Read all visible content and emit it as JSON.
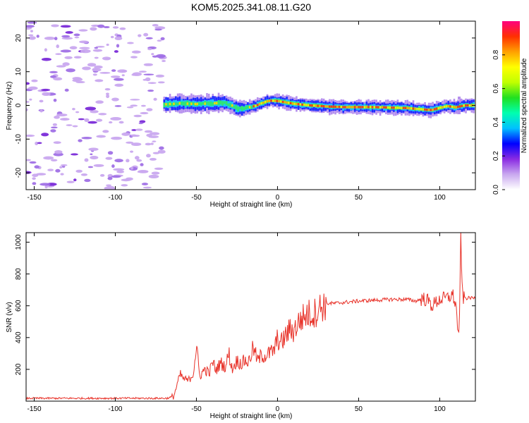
{
  "title": "KOM5.2025.341.08.11.G20",
  "chart_data": [
    {
      "type": "heatmap",
      "title": "KOM5.2025.341.08.11.G20",
      "xlabel": "Height of straight line (km)",
      "ylabel": "Frequency (Hz)",
      "xlim": [
        -155,
        122
      ],
      "ylim": [
        -25,
        25
      ],
      "xticks": [
        -150,
        -100,
        -50,
        0,
        50,
        100
      ],
      "yticks": [
        -20,
        -10,
        0,
        10,
        20
      ],
      "noise_region_x": [
        -155,
        -70
      ],
      "ridge": {
        "x": [
          -70,
          -60,
          -50,
          -40,
          -33,
          -28,
          -25,
          -22,
          -18,
          -14,
          -10,
          -6,
          -3,
          0,
          5,
          10,
          20,
          30,
          40,
          60,
          80,
          90,
          95,
          100,
          105,
          110,
          115,
          122
        ],
        "y": [
          0.3,
          0.6,
          0.4,
          0.6,
          0.8,
          0.0,
          -0.9,
          -1.0,
          -0.6,
          -0.2,
          0.6,
          1.3,
          1.4,
          1.3,
          0.9,
          0.5,
          0.0,
          -0.3,
          -0.5,
          -0.5,
          -0.8,
          -1.2,
          -1.4,
          -0.7,
          -0.2,
          -0.6,
          0.0,
          0.0
        ]
      },
      "colorbar": {
        "label": "Normalized spectral amplitude",
        "ticks": [
          0.0,
          0.2,
          0.4,
          0.6,
          0.8
        ],
        "range": [
          0,
          1
        ],
        "stops": [
          "#ffffff",
          "#c9a8ef",
          "#8a2be2",
          "#0000ff",
          "#00c0ff",
          "#00ffb0",
          "#20e020",
          "#c0ff00",
          "#ffff00",
          "#ffa000",
          "#ff3000",
          "#ff007f"
        ]
      }
    },
    {
      "type": "line",
      "xlabel": "Height of straight line (km)",
      "ylabel": "SNR (v/v)",
      "xlim": [
        -155,
        122
      ],
      "ylim": [
        0,
        1060
      ],
      "xticks": [
        -150,
        -100,
        -50,
        0,
        50,
        100
      ],
      "yticks": [
        200,
        400,
        600,
        800,
        1000
      ],
      "color": "#e8332a",
      "series": [
        {
          "name": "SNR",
          "x": [
            -155,
            -120,
            -80,
            -68,
            -64,
            -62,
            -60,
            -58,
            -55,
            -52,
            -50,
            -48,
            -45,
            -42,
            -40,
            -38,
            -35,
            -32,
            -30,
            -28,
            -25,
            -22,
            -20,
            -18,
            -15,
            -12,
            -10,
            -8,
            -5,
            -2,
            0,
            2,
            5,
            8,
            10,
            12,
            15,
            18,
            20,
            22,
            25,
            30,
            35,
            40,
            50,
            60,
            70,
            80,
            85,
            90,
            93,
            95,
            100,
            105,
            108,
            110,
            111,
            112,
            113,
            114,
            116,
            118,
            122
          ],
          "y": [
            18,
            18,
            18,
            18,
            30,
            100,
            170,
            140,
            130,
            170,
            345,
            155,
            200,
            175,
            250,
            195,
            240,
            215,
            305,
            200,
            255,
            235,
            260,
            240,
            335,
            250,
            290,
            285,
            300,
            320,
            395,
            360,
            410,
            455,
            440,
            480,
            520,
            545,
            550,
            545,
            580,
            615,
            615,
            620,
            630,
            635,
            640,
            640,
            630,
            645,
            630,
            600,
            640,
            650,
            670,
            600,
            480,
            370,
            1060,
            650,
            645,
            650,
            648
          ]
        }
      ]
    }
  ]
}
